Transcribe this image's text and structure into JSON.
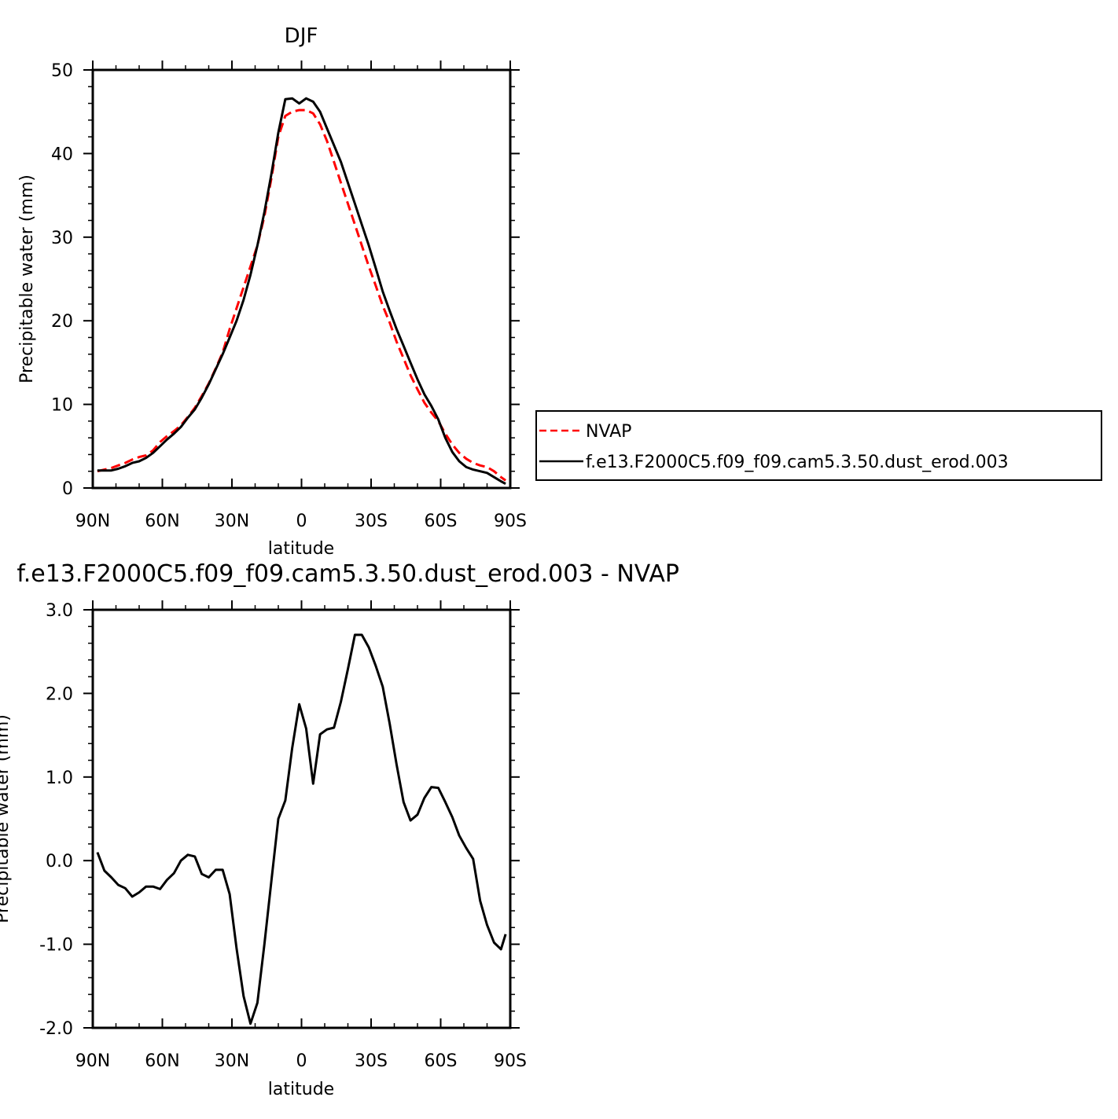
{
  "chart_data": [
    {
      "type": "line",
      "title": "DJF",
      "xlabel": "latitude",
      "ylabel": "Precipitable water (mm)",
      "xlim": [
        90,
        -90
      ],
      "ylim": [
        0,
        50
      ],
      "x_ticks": [
        {
          "value": 90,
          "label": "90N"
        },
        {
          "value": 60,
          "label": "60N"
        },
        {
          "value": 30,
          "label": "30N"
        },
        {
          "value": 0,
          "label": "0"
        },
        {
          "value": -30,
          "label": "30S"
        },
        {
          "value": -60,
          "label": "60S"
        },
        {
          "value": -90,
          "label": "90S"
        }
      ],
      "y_ticks": [
        {
          "value": 0,
          "label": "0"
        },
        {
          "value": 10,
          "label": "10"
        },
        {
          "value": 20,
          "label": "20"
        },
        {
          "value": 30,
          "label": "30"
        },
        {
          "value": 40,
          "label": "40"
        },
        {
          "value": 50,
          "label": "50"
        }
      ],
      "legend": "right",
      "series": [
        {
          "name": "NVAP",
          "color": "#ff0000",
          "dash": "dashed",
          "x": [
            88,
            85,
            82,
            79,
            76,
            73,
            70,
            67,
            64,
            61,
            58,
            55,
            52,
            49,
            46,
            43,
            40,
            37,
            34,
            31,
            28,
            25,
            22,
            19,
            16,
            13,
            10,
            7,
            4,
            1,
            -2,
            -5,
            -8,
            -11,
            -14,
            -17,
            -20,
            -23,
            -26,
            -29,
            -32,
            -35,
            -38,
            -41,
            -44,
            -47,
            -50,
            -53,
            -56,
            -59,
            -62,
            -65,
            -68,
            -71,
            -74,
            -77,
            -80,
            -83,
            -86,
            -88
          ],
          "y": [
            2.0,
            2.2,
            2.4,
            2.7,
            3.0,
            3.4,
            3.7,
            3.9,
            4.5,
            5.5,
            6.2,
            6.8,
            7.5,
            8.5,
            9.6,
            11.0,
            12.5,
            14.3,
            16.2,
            19.0,
            21.5,
            24.0,
            26.5,
            29.0,
            32.5,
            37.0,
            42.0,
            44.5,
            45.0,
            45.2,
            45.2,
            44.8,
            43.5,
            41.5,
            39.0,
            36.5,
            34.0,
            31.5,
            29.0,
            26.5,
            24.2,
            21.8,
            19.8,
            17.5,
            15.5,
            13.5,
            11.8,
            10.2,
            9.0,
            8.0,
            6.5,
            5.2,
            4.2,
            3.5,
            3.0,
            2.7,
            2.5,
            2.0,
            1.3,
            0.9
          ]
        },
        {
          "name": "f.e13.F2000C5.f09_f09.cam5.3.50.dust_erod.003",
          "color": "#000000",
          "dash": "solid",
          "x": [
            88,
            85,
            82,
            79,
            76,
            73,
            70,
            67,
            64,
            61,
            58,
            55,
            52,
            49,
            46,
            43,
            40,
            37,
            34,
            31,
            28,
            25,
            22,
            19,
            16,
            13,
            10,
            7,
            4,
            1,
            -2,
            -5,
            -8,
            -11,
            -14,
            -17,
            -20,
            -23,
            -26,
            -29,
            -32,
            -35,
            -38,
            -41,
            -44,
            -47,
            -50,
            -53,
            -56,
            -59,
            -62,
            -65,
            -68,
            -71,
            -74,
            -77,
            -80,
            -83,
            -86,
            -88
          ],
          "y": [
            2.1,
            2.1,
            2.1,
            2.3,
            2.6,
            3.0,
            3.2,
            3.6,
            4.2,
            5.0,
            5.8,
            6.5,
            7.3,
            8.4,
            9.4,
            10.8,
            12.4,
            14.2,
            16.0,
            18.0,
            20.0,
            22.5,
            25.5,
            29.0,
            33.0,
            37.5,
            42.5,
            46.5,
            46.6,
            46.0,
            46.6,
            46.2,
            45.0,
            43.0,
            41.0,
            39.0,
            36.5,
            34.0,
            31.5,
            29.0,
            26.3,
            23.5,
            21.2,
            19.0,
            17.0,
            15.0,
            13.0,
            11.2,
            9.8,
            8.2,
            6.0,
            4.3,
            3.2,
            2.5,
            2.2,
            2.0,
            1.8,
            1.3,
            0.8,
            0.5
          ]
        }
      ]
    },
    {
      "type": "line",
      "title": "f.e13.F2000C5.f09_f09.cam5.3.50.dust_erod.003 - NVAP",
      "xlabel": "latitude",
      "ylabel": "Precipitable water (mm)",
      "xlim": [
        90,
        -90
      ],
      "ylim": [
        -2.0,
        3.0
      ],
      "x_ticks": [
        {
          "value": 90,
          "label": "90N"
        },
        {
          "value": 60,
          "label": "60N"
        },
        {
          "value": 30,
          "label": "30N"
        },
        {
          "value": 0,
          "label": "0"
        },
        {
          "value": -30,
          "label": "30S"
        },
        {
          "value": -60,
          "label": "60S"
        },
        {
          "value": -90,
          "label": "90S"
        }
      ],
      "y_ticks": [
        {
          "value": -2.0,
          "label": "-2.0"
        },
        {
          "value": -1.0,
          "label": "-1.0"
        },
        {
          "value": 0.0,
          "label": "0.0"
        },
        {
          "value": 1.0,
          "label": "1.0"
        },
        {
          "value": 2.0,
          "label": "2.0"
        },
        {
          "value": 3.0,
          "label": "3.0"
        }
      ],
      "series": [
        {
          "color": "#000000",
          "dash": "solid",
          "x": [
            88,
            85,
            82,
            79,
            76,
            73,
            70,
            67,
            64,
            61,
            58,
            55,
            52,
            49,
            46,
            43,
            40,
            37,
            34,
            31,
            28,
            25,
            22,
            19,
            16,
            13,
            10,
            7,
            4,
            1,
            -2,
            -5,
            -8,
            -11,
            -14,
            -17,
            -20,
            -23,
            -26,
            -29,
            -32,
            -35,
            -38,
            -41,
            -44,
            -47,
            -50,
            -53,
            -56,
            -59,
            -62,
            -65,
            -68,
            -71,
            -74,
            -77,
            -80,
            -83,
            -86,
            -88
          ],
          "y": [
            0.1,
            -0.12,
            -0.2,
            -0.29,
            -0.33,
            -0.43,
            -0.38,
            -0.31,
            -0.31,
            -0.34,
            -0.23,
            -0.15,
            0.0,
            0.07,
            0.05,
            -0.16,
            -0.2,
            -0.11,
            -0.11,
            -0.4,
            -1.05,
            -1.62,
            -1.95,
            -1.7,
            -1.0,
            -0.25,
            0.5,
            0.72,
            1.35,
            1.87,
            1.58,
            0.92,
            1.51,
            1.57,
            1.59,
            1.9,
            2.29,
            2.7,
            2.7,
            2.55,
            2.33,
            2.08,
            1.64,
            1.15,
            0.7,
            0.48,
            0.55,
            0.75,
            0.88,
            0.87,
            0.7,
            0.52,
            0.3,
            0.15,
            0.02,
            -0.48,
            -0.77,
            -0.98,
            -1.06,
            -0.88
          ]
        }
      ]
    }
  ],
  "legend": {
    "entries": [
      {
        "label": "NVAP",
        "color": "#ff0000",
        "dash": "dashed"
      },
      {
        "label": "f.e13.F2000C5.f09_f09.cam5.3.50.dust_erod.003",
        "color": "#000000",
        "dash": "solid"
      }
    ]
  }
}
